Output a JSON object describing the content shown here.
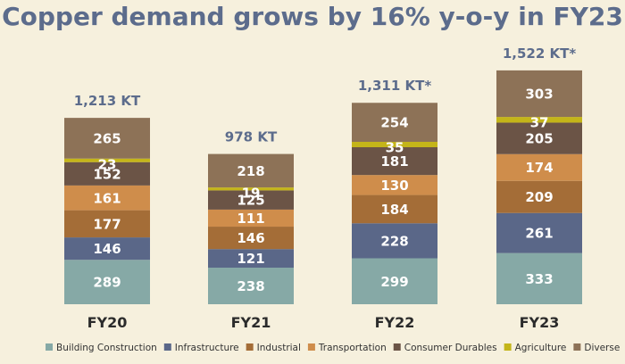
{
  "chart_data": {
    "type": "bar",
    "stacked": true,
    "title": "Copper demand grows by 16% y-o-y in FY23",
    "categories": [
      "FY20",
      "FY21",
      "FY22",
      "FY23"
    ],
    "totals": [
      "1,213 KT",
      "978 KT",
      "1,311 KT*",
      "1,522 KT*"
    ],
    "series": [
      {
        "name": "Building Construction",
        "color": "#86a9a6",
        "values": [
          289,
          238,
          299,
          333
        ]
      },
      {
        "name": "Infrastructure",
        "color": "#5a6788",
        "values": [
          146,
          121,
          228,
          261
        ]
      },
      {
        "name": "Industrial",
        "color": "#a46d37",
        "values": [
          177,
          146,
          184,
          209
        ]
      },
      {
        "name": "Transportation",
        "color": "#cf8d4b",
        "values": [
          161,
          111,
          130,
          174
        ]
      },
      {
        "name": "Consumer Durables",
        "color": "#6b5446",
        "values": [
          152,
          125,
          181,
          205
        ]
      },
      {
        "name": "Agriculture",
        "color": "#c4b519",
        "values": [
          23,
          19,
          35,
          37
        ]
      },
      {
        "name": "Diverse",
        "color": "#8d7257",
        "values": [
          265,
          218,
          254,
          303
        ]
      }
    ],
    "legend_position": "bottom",
    "grid": false
  }
}
